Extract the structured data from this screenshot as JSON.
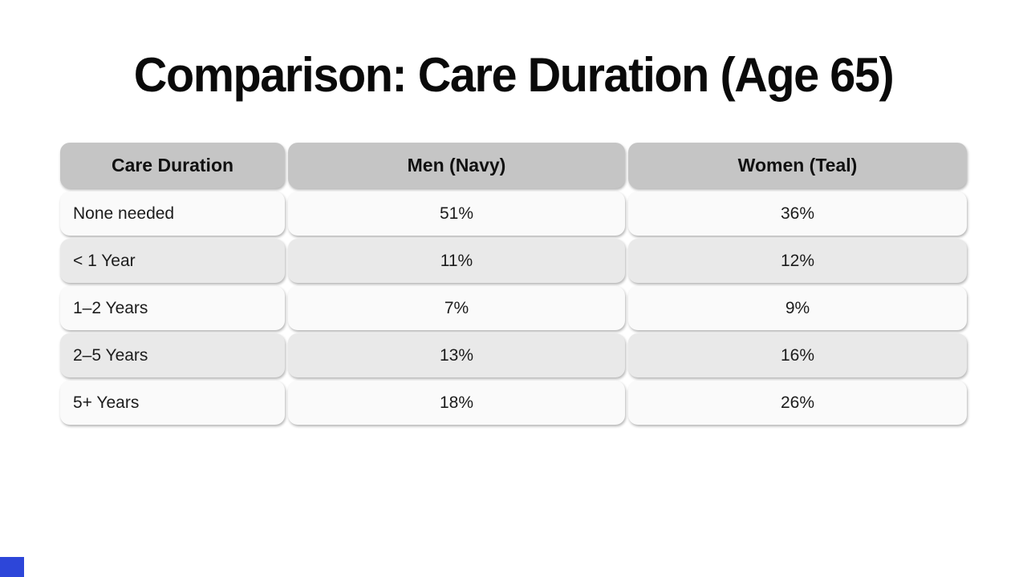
{
  "slide": {
    "title": "Comparison: Care Duration (Age 65)",
    "background": "#ffffff",
    "accent_square_color": "#2d46d9"
  },
  "chart_data": {
    "type": "table",
    "title": "Comparison: Care Duration (Age 65)",
    "columns": [
      "Care Duration",
      "Men (Navy)",
      "Women (Teal)"
    ],
    "rows": [
      [
        "None needed",
        "51%",
        "36%"
      ],
      [
        "< 1 Year",
        "11%",
        "12%"
      ],
      [
        "1–2 Years",
        "7%",
        "9%"
      ],
      [
        "2–5 Years",
        "13%",
        "16%"
      ],
      [
        "5+ Years",
        "18%",
        "26%"
      ]
    ],
    "layout_hints": {
      "header_align": "center",
      "label_column_align": "left",
      "value_columns_align": "center",
      "row_striping": "alternating"
    }
  },
  "colors": {
    "header_bg": "#c5c5c5",
    "row_light": "#fafafa",
    "row_dark": "#e9e9e9",
    "header_text": "#111111",
    "body_text": "#1c1c1c",
    "title_text": "#0a0a0a"
  }
}
